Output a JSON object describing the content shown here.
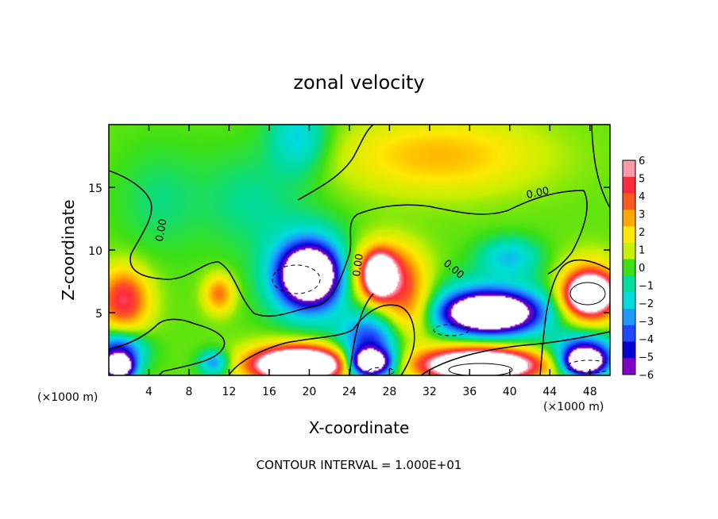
{
  "chart_data": {
    "type": "heatmap",
    "title": "zonal velocity",
    "xlabel": "X-coordinate",
    "ylabel": "Z-coordinate",
    "x_unit": "(×1000 m)",
    "xlim": [
      0,
      50
    ],
    "ylim": [
      0,
      20
    ],
    "x_ticks": [
      "4",
      "8",
      "12",
      "16",
      "20",
      "24",
      "28",
      "32",
      "36",
      "40",
      "44",
      "48"
    ],
    "y_ticks": [
      "5",
      "10",
      "15"
    ],
    "colorbar": {
      "labels": [
        "6",
        "5",
        "4",
        "3",
        "2",
        "1",
        "0",
        "−1",
        "−2",
        "−3",
        "−4",
        "−5",
        "−6"
      ],
      "colors": [
        "#ff9aa8",
        "#ff2a3c",
        "#ff5a1e",
        "#ffaa00",
        "#ffe800",
        "#c8f000",
        "#3ce014",
        "#00dc9a",
        "#00dcdc",
        "#1e9aff",
        "#1e4aff",
        "#0a00d0",
        "#8000c8"
      ]
    },
    "contour_labels": [
      "0.00",
      "0.00",
      "0.00",
      "0.00",
      "0.00"
    ],
    "footer": "CONTOUR INTERVAL = 1.000E+01",
    "regions": [
      {
        "name": "upper-yellow",
        "x": 33,
        "z": 17.5,
        "value": 2.5,
        "sx": 10,
        "sz": 3
      },
      {
        "name": "upper-blue",
        "x": 19,
        "z": 19,
        "value": -2.5,
        "sx": 3,
        "sz": 3
      },
      {
        "name": "left-cyan",
        "x": 5,
        "z": 14,
        "value": -1,
        "sx": 4,
        "sz": 4
      },
      {
        "name": "mid-cyan",
        "x": 14,
        "z": 14,
        "value": -1.2,
        "sx": 5,
        "sz": 4
      },
      {
        "name": "ring-neg-center",
        "x": 20,
        "z": 8,
        "value": -5,
        "sx": 4,
        "sz": 3.5
      },
      {
        "name": "core-20",
        "x": 20,
        "z": 8,
        "value": -9,
        "sx": 2.6,
        "sz": 2
      },
      {
        "name": "left-red",
        "x": 1.5,
        "z": 6,
        "value": 5,
        "sx": 2.5,
        "sz": 2.5
      },
      {
        "name": "red-11",
        "x": 11,
        "z": 6.5,
        "value": 3.5,
        "sx": 1.5,
        "sz": 1.5
      },
      {
        "name": "red-28",
        "x": 27.5,
        "z": 8,
        "value": 5.5,
        "sx": 3.5,
        "sz": 2.5
      },
      {
        "name": "core-27",
        "x": 27,
        "z": 8,
        "value": 9,
        "sx": 1.3,
        "sz": 1.5
      },
      {
        "name": "orange-30",
        "x": 30,
        "z": 5,
        "value": 3,
        "sx": 2.5,
        "sz": 2.5
      },
      {
        "name": "blue-ring-38",
        "x": 38,
        "z": 5,
        "value": -5,
        "sx": 6,
        "sz": 2.5
      },
      {
        "name": "core-38",
        "x": 38,
        "z": 5,
        "value": -9,
        "sx": 4,
        "sz": 1.3
      },
      {
        "name": "blue-40-top",
        "x": 40,
        "z": 9.5,
        "value": -2.5,
        "sx": 3,
        "sz": 1.5
      },
      {
        "name": "right-red",
        "x": 48,
        "z": 6.5,
        "value": 5.5,
        "sx": 3,
        "sz": 2.5
      },
      {
        "name": "core-48",
        "x": 48,
        "z": 6.5,
        "value": 9,
        "sx": 2,
        "sz": 1.3
      },
      {
        "name": "bottom-red-20",
        "x": 19,
        "z": 1,
        "value": 6,
        "sx": 5,
        "sz": 1.6
      },
      {
        "name": "core-bottom-20",
        "x": 19,
        "z": 0.8,
        "value": 9,
        "sx": 4,
        "sz": 1.1
      },
      {
        "name": "bottom-red-38",
        "x": 37,
        "z": 1.2,
        "value": 6,
        "sx": 6,
        "sz": 1.5
      },
      {
        "name": "core-bottom-38",
        "x": 37,
        "z": 0.7,
        "value": 9,
        "sx": 5,
        "sz": 1
      },
      {
        "name": "bottom-left-blue",
        "x": 1,
        "z": 2,
        "value": -5,
        "sx": 2.5,
        "sz": 1.5
      },
      {
        "name": "bottom-left-core",
        "x": 1,
        "z": 0.6,
        "value": -9,
        "sx": 1.5,
        "sz": 1
      },
      {
        "name": "bottom-blue-27",
        "x": 26,
        "z": 2.5,
        "value": -5,
        "sx": 3,
        "sz": 2.5
      },
      {
        "name": "core-bottom-27",
        "x": 26,
        "z": 1,
        "value": -9,
        "sx": 2,
        "sz": 1
      },
      {
        "name": "bottom-blue-10",
        "x": 10.5,
        "z": 1,
        "value": -3.5,
        "sx": 1.5,
        "sz": 1
      },
      {
        "name": "bottom-right-blue",
        "x": 47.5,
        "z": 2,
        "value": -5,
        "sx": 3,
        "sz": 1.5
      },
      {
        "name": "bottom-right-core",
        "x": 47.5,
        "z": 1,
        "value": -9,
        "sx": 2,
        "sz": 1
      }
    ]
  }
}
